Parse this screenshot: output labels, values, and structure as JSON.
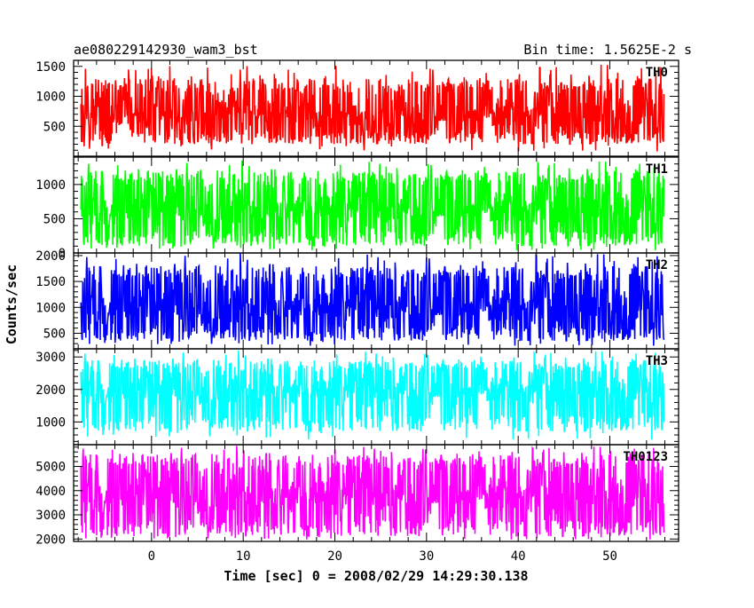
{
  "header": {
    "left_title": "ae080229142930_wam3_bst",
    "right_title": "Bin time: 1.5625E-2 s"
  },
  "chart_data": {
    "type": "line",
    "title": "ae080229142930_wam3_bst",
    "subtitle": "Bin time: 1.5625E-2 s",
    "xlabel": "Time [sec] 0 = 2008/02/29 14:29:30.138",
    "ylabel": "Counts/sec",
    "xlim": [
      -8.5,
      57.5
    ],
    "data_x_range": [
      -7.7,
      55.9
    ],
    "x_ticks": [
      0,
      10,
      20,
      30,
      40,
      50
    ],
    "x_tick_labels": [
      "0",
      "10",
      "20",
      "30",
      "40",
      "50"
    ],
    "grid": false,
    "legend": "none",
    "panels": [
      {
        "name": "TH0",
        "color": "#ff0000",
        "ylim": [
          0,
          1600
        ],
        "y_ticks": [
          500,
          1000,
          1500
        ],
        "y_tick_labels": [
          "500",
          "1000",
          "1500"
        ],
        "mean": 700,
        "typical_min": 200,
        "typical_max": 1300,
        "peak_max": 1550
      },
      {
        "name": "TH1",
        "color": "#00ff00",
        "ylim": [
          0,
          1400
        ],
        "y_ticks": [
          0,
          500,
          1000
        ],
        "y_tick_labels": [
          "0",
          "500",
          "1000"
        ],
        "mean": 640,
        "typical_min": 100,
        "typical_max": 1200,
        "peak_max": 1350
      },
      {
        "name": "TH2",
        "color": "#0000ff",
        "ylim": [
          200,
          2050
        ],
        "y_ticks": [
          500,
          1000,
          1500,
          2000
        ],
        "y_tick_labels": [
          "500",
          "1000",
          "1500",
          "2000"
        ],
        "mean": 1000,
        "typical_min": 350,
        "typical_max": 1800,
        "peak_max": 2050
      },
      {
        "name": "TH3",
        "color": "#00ffff",
        "ylim": [
          300,
          3250
        ],
        "y_ticks": [
          1000,
          2000,
          3000
        ],
        "y_tick_labels": [
          "1000",
          "2000",
          "3000"
        ],
        "mean": 1950,
        "typical_min": 700,
        "typical_max": 2900,
        "peak_max": 3200
      },
      {
        "name": "TH0123",
        "color": "#ff00ff",
        "ylim": [
          1900,
          5900
        ],
        "y_ticks": [
          2000,
          3000,
          4000,
          5000
        ],
        "y_tick_labels": [
          "2000",
          "3000",
          "4000",
          "5000"
        ],
        "mean": 3800,
        "typical_min": 2100,
        "typical_max": 5500,
        "peak_max": 5850
      }
    ]
  }
}
